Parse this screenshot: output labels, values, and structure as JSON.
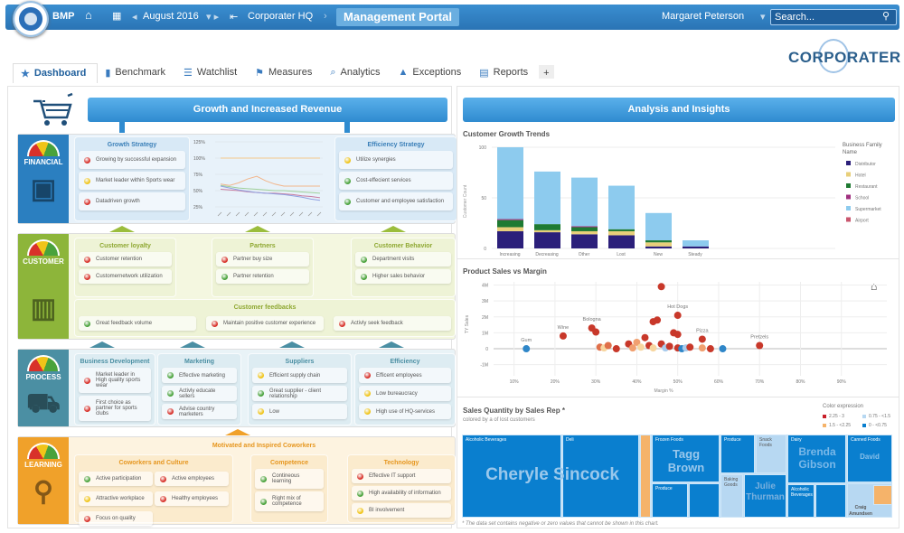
{
  "topbar": {
    "app": "BMP",
    "period": "August 2016",
    "org": "Corporater HQ",
    "portal": "Management Portal",
    "user": "Margaret Peterson",
    "search_placeholder": "Search..."
  },
  "brand": "CORPORATER",
  "tabs": [
    {
      "label": "Dashboard",
      "icon": "star"
    },
    {
      "label": "Benchmark",
      "icon": "bar-chart"
    },
    {
      "label": "Watchlist",
      "icon": "list"
    },
    {
      "label": "Measures",
      "icon": "flag"
    },
    {
      "label": "Analytics",
      "icon": "magnifier"
    },
    {
      "label": "Exceptions",
      "icon": "warning"
    },
    {
      "label": "Reports",
      "icon": "report"
    },
    {
      "label": "+",
      "icon": "add"
    }
  ],
  "colors": {
    "red": "#d8312a",
    "yellow": "#f0c419",
    "green": "#49a23b",
    "financial": "#2b7fc0",
    "customer": "#8db53a",
    "process": "#4b8fa3",
    "learning": "#f0a12a"
  },
  "left": {
    "banner": "Growth and Increased Revenue",
    "rows": [
      {
        "label": "FINANCIAL",
        "groups": [
          {
            "title": "Growth Strategy",
            "items": [
              {
                "text": "Growing by successful expansion",
                "status": "red"
              },
              {
                "text": "Market leader within Sports wear",
                "status": "yellow"
              },
              {
                "text": "Datadriven growth",
                "status": "red"
              }
            ]
          },
          {
            "title": "Efficiency Strategy",
            "items": [
              {
                "text": "Utilize synergies",
                "status": "yellow"
              },
              {
                "text": "Cost-effecient services",
                "status": "green"
              },
              {
                "text": "Customer and employee satisfaction",
                "status": "green"
              }
            ]
          }
        ]
      },
      {
        "label": "CUSTOMER",
        "groups": [
          {
            "title": "Customer loyalty",
            "items": [
              {
                "text": "Customer retention",
                "status": "red"
              },
              {
                "text": "Customernetwork utilization",
                "status": "red"
              }
            ]
          },
          {
            "title": "Partners",
            "items": [
              {
                "text": "Partner buy size",
                "status": "red"
              },
              {
                "text": "Partner retention",
                "status": "green"
              }
            ]
          },
          {
            "title": "Customer Behavior",
            "items": [
              {
                "text": "Department visits",
                "status": "green"
              },
              {
                "text": "Higher sales behavior",
                "status": "green"
              }
            ]
          },
          {
            "title": "Customer feedbacks",
            "items": [
              {
                "text": "Great feedback volume",
                "status": "green"
              },
              {
                "text": "Maintain positive customer experience",
                "status": "red"
              },
              {
                "text": "Activly seek feedback",
                "status": "red"
              }
            ]
          }
        ]
      },
      {
        "label": "PROCESS",
        "groups": [
          {
            "title": "Business Development",
            "items": [
              {
                "text": "Market leader in High quality sports wear",
                "status": "red"
              },
              {
                "text": "First choice as partner for sports clubs",
                "status": "red"
              }
            ]
          },
          {
            "title": "Marketing",
            "items": [
              {
                "text": "Effective marketing",
                "status": "green"
              },
              {
                "text": "Activly educate sellers",
                "status": "green"
              },
              {
                "text": "Advise country marketers",
                "status": "red"
              }
            ]
          },
          {
            "title": "Suppliers",
            "items": [
              {
                "text": "Efficient supply chain",
                "status": "yellow"
              },
              {
                "text": "Great supplier - client relationship",
                "status": "green"
              },
              {
                "text": "Low",
                "status": "yellow"
              }
            ]
          },
          {
            "title": "Efficiency",
            "items": [
              {
                "text": "Efficent employees",
                "status": "red"
              },
              {
                "text": "Low bureaucracy",
                "status": "yellow"
              },
              {
                "text": "High use of HQ-services",
                "status": "yellow"
              }
            ]
          }
        ]
      },
      {
        "label": "LEARNING",
        "header": "Motivated and Inspired Coworkers",
        "groups": [
          {
            "title": "Coworkers and Culture",
            "items": [
              {
                "text": "Active participation",
                "status": "green"
              },
              {
                "text": "Attractive workplace",
                "status": "yellow"
              },
              {
                "text": "Focus on quality",
                "status": "red"
              },
              {
                "text": "Active employees",
                "status": "red"
              },
              {
                "text": "Healthy employees",
                "status": "red"
              }
            ]
          },
          {
            "title": "Competence",
            "items": [
              {
                "text": "Contineous learning",
                "status": "green"
              },
              {
                "text": "Right mix of competence",
                "status": "green"
              }
            ]
          },
          {
            "title": "Technology",
            "items": [
              {
                "text": "Effective IT support",
                "status": "red"
              },
              {
                "text": "High availability of information",
                "status": "green"
              },
              {
                "text": "BI involvement",
                "status": "yellow"
              }
            ]
          }
        ]
      }
    ]
  },
  "right": {
    "banner": "Analysis and Insights"
  },
  "chart_data": [
    {
      "type": "line",
      "yticks": [
        "125%",
        "100%",
        "75%",
        "50%",
        "25%"
      ],
      "ylim": [
        25,
        125
      ],
      "series": [
        {
          "color": "#f5c88a",
          "values": [
            100,
            100,
            100,
            100,
            100,
            100,
            100,
            100,
            100,
            100,
            100,
            100
          ]
        },
        {
          "color": "#f2b58a",
          "values": [
            60,
            58,
            62,
            68,
            72,
            65,
            60,
            57,
            57,
            57,
            57,
            57
          ]
        },
        {
          "color": "#9fd09a",
          "values": [
            58,
            56,
            54,
            53,
            52,
            51,
            50,
            50,
            49,
            48,
            47,
            46
          ]
        },
        {
          "color": "#c77ca0",
          "values": [
            52,
            51,
            50,
            48,
            47,
            46,
            46,
            45,
            44,
            42,
            41,
            39
          ]
        },
        {
          "color": "#8fa0e0",
          "values": [
            57,
            54,
            51,
            49,
            47,
            46,
            45,
            44,
            42,
            40,
            37,
            35
          ]
        }
      ]
    },
    {
      "type": "bar",
      "stacked": true,
      "title": "Customer Growth Trends",
      "ylabel": "Customer Count",
      "ylim": [
        0,
        100
      ],
      "yticks": [
        0,
        50,
        100
      ],
      "categories": [
        "Increasing",
        "Decreasing",
        "Other",
        "Lost",
        "New",
        "Steady"
      ],
      "legend_title": "Business Family Name",
      "legend_placement": "right",
      "series": [
        {
          "name": "Distributor",
          "color": "#2b1f7a",
          "values": [
            17,
            16,
            14,
            13,
            2,
            2
          ]
        },
        {
          "name": "Hotel",
          "color": "#e8cf7a",
          "values": [
            4,
            2,
            3,
            4,
            4,
            0
          ]
        },
        {
          "name": "Restaurant",
          "color": "#1e7a32",
          "values": [
            7,
            6,
            4,
            2,
            2,
            0
          ]
        },
        {
          "name": "School",
          "color": "#a0307f",
          "values": [
            1,
            0,
            1,
            0,
            0,
            0
          ]
        },
        {
          "name": "Supermarket",
          "color": "#8dcbee",
          "values": [
            71,
            52,
            48,
            43,
            27,
            6
          ]
        },
        {
          "name": "Airport",
          "color": "#c9566e",
          "values": [
            0,
            0,
            0,
            0,
            0,
            0
          ]
        }
      ]
    },
    {
      "type": "scatter",
      "title": "Product Sales vs Margin",
      "xlabel": "Margin %",
      "ylabel": "TY Sales",
      "xlim": [
        5,
        100
      ],
      "ylim": [
        -1.7,
        4.2
      ],
      "xticks": [
        "10%",
        "20%",
        "30%",
        "40%",
        "50%",
        "60%",
        "70%",
        "80%",
        "90%"
      ],
      "xtick_values": [
        10,
        20,
        30,
        40,
        50,
        60,
        70,
        80,
        90
      ],
      "yticks": [
        "-1M",
        "0",
        "1M",
        "2M",
        "3M",
        "4M"
      ],
      "ytick_values": [
        -1,
        0,
        1,
        2,
        3,
        4
      ],
      "points": [
        {
          "x": 13,
          "y": 0,
          "c": "#2f86c8",
          "label": "Gum"
        },
        {
          "x": 22,
          "y": 0.8,
          "c": "#c8382a",
          "label": "Wine"
        },
        {
          "x": 29,
          "y": 1.3,
          "c": "#c8382a",
          "label": "Bologna"
        },
        {
          "x": 30,
          "y": 1.05,
          "c": "#c8382a"
        },
        {
          "x": 46,
          "y": 3.9,
          "c": "#c8382a"
        },
        {
          "x": 50,
          "y": 2.1,
          "c": "#c8382a",
          "label": "Hot Dogs"
        },
        {
          "x": 44,
          "y": 1.7,
          "c": "#c8382a"
        },
        {
          "x": 45,
          "y": 1.8,
          "c": "#c8382a"
        },
        {
          "x": 49,
          "y": 1.0,
          "c": "#c8382a"
        },
        {
          "x": 50,
          "y": 0.9,
          "c": "#c8382a"
        },
        {
          "x": 42,
          "y": 0.7,
          "c": "#c8382a"
        },
        {
          "x": 56,
          "y": 0.6,
          "c": "#c8382a",
          "label": "Pizza"
        },
        {
          "x": 70,
          "y": 0.2,
          "c": "#c8382a",
          "label": "Pretzels"
        },
        {
          "x": 31,
          "y": 0.1,
          "c": "#e0704a"
        },
        {
          "x": 32,
          "y": 0.05,
          "c": "#f7d6a0"
        },
        {
          "x": 33,
          "y": 0.2,
          "c": "#e0704a"
        },
        {
          "x": 35,
          "y": 0,
          "c": "#c8382a"
        },
        {
          "x": 38,
          "y": 0.3,
          "c": "#c8382a"
        },
        {
          "x": 39,
          "y": 0.05,
          "c": "#f1a070"
        },
        {
          "x": 40,
          "y": 0.4,
          "c": "#f1a070"
        },
        {
          "x": 41,
          "y": 0.1,
          "c": "#f7d6a0"
        },
        {
          "x": 43,
          "y": 0.2,
          "c": "#c8382a"
        },
        {
          "x": 44,
          "y": 0.05,
          "c": "#f7d6a0"
        },
        {
          "x": 46,
          "y": 0.3,
          "c": "#c8382a"
        },
        {
          "x": 47,
          "y": 0.05,
          "c": "#a9ccec"
        },
        {
          "x": 48,
          "y": 0.15,
          "c": "#c8382a"
        },
        {
          "x": 50,
          "y": 0.05,
          "c": "#c8382a"
        },
        {
          "x": 51,
          "y": 0,
          "c": "#2f86c8"
        },
        {
          "x": 52,
          "y": 0.05,
          "c": "#a9ccec"
        },
        {
          "x": 53,
          "y": 0.1,
          "c": "#c8382a"
        },
        {
          "x": 56,
          "y": 0.05,
          "c": "#f1a070"
        },
        {
          "x": 58,
          "y": 0,
          "c": "#c8382a"
        },
        {
          "x": 61,
          "y": 0,
          "c": "#2f86c8"
        }
      ]
    },
    {
      "type": "treemap",
      "title": "Sales Quantity by Sales Rep *",
      "subtitle": "colored by a of lost customers",
      "footnote": "* The data set contains negative or zero values that cannot be shown in this chart.",
      "legend_title": "Color expression",
      "legend": [
        {
          "label": "2.25 - 3",
          "color": "#c8202a"
        },
        {
          "label": "1.5 - <2.25",
          "color": "#f5b36a"
        },
        {
          "label": "0.75 - <1.5",
          "color": "#b7d8f2"
        },
        {
          "label": "0 - <0.75",
          "color": "#0a7fcf"
        }
      ],
      "reps": [
        "Cheryle Sincock",
        "Tagg Brown",
        "Julie Thurman",
        "Brenda Gibson",
        "David",
        "Craig Amundsen"
      ],
      "categories": [
        "Alcoholic Beverages",
        "Deli",
        "Produce",
        "Frozen Foods",
        "Produce",
        "Product",
        "Snack Foods",
        "Baking Goods",
        "Dairy",
        "Alcoholic Beverages",
        "Canned Foods"
      ]
    }
  ]
}
